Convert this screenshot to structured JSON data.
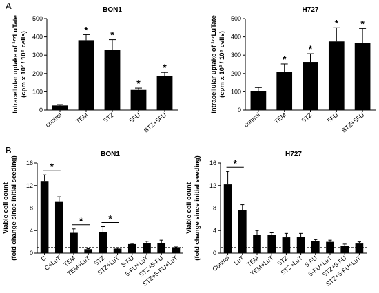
{
  "panel_labels": [
    "A",
    "B"
  ],
  "chart_data": [
    {
      "type": "bar",
      "title": "BON1",
      "ylabel_line1": "Intracellular uptake of ¹⁷⁷LuTate",
      "ylabel_line2": "(cpm x 10² / 10⁶ cells)",
      "xlabel": "",
      "ylim": [
        0,
        500
      ],
      "yticks": [
        0,
        100,
        200,
        300,
        400,
        500
      ],
      "grid": false,
      "categories": [
        "control",
        "TEM",
        "STZ",
        "5FU",
        "STZ+5FU"
      ],
      "values": [
        25,
        382,
        330,
        110,
        188
      ],
      "errors": [
        5,
        30,
        55,
        10,
        18
      ],
      "significance": [
        "",
        "*",
        "*",
        "*",
        "*"
      ]
    },
    {
      "type": "bar",
      "title": "H727",
      "ylabel_line1": "Intracellular uptake of ¹⁷⁷LuTate",
      "ylabel_line2": "(cpm x 10² / 10⁶ cells)",
      "xlabel": "",
      "ylim": [
        0,
        500
      ],
      "yticks": [
        0,
        100,
        200,
        300,
        400,
        500
      ],
      "grid": false,
      "categories": [
        "control",
        "TEM",
        "STZ",
        "5FU",
        "STZ+5FU"
      ],
      "values": [
        105,
        210,
        263,
        375,
        368
      ],
      "errors": [
        18,
        42,
        45,
        75,
        78
      ],
      "significance": [
        "",
        "*",
        "*",
        "*",
        "*"
      ]
    },
    {
      "type": "bar",
      "title": "BON1",
      "ylabel_line1": "Viable cell count",
      "ylabel_line2": "(fold change since initial seeding)",
      "xlabel": "",
      "ylim": [
        0,
        16
      ],
      "yticks": [
        0,
        4,
        8,
        12,
        16
      ],
      "grid": false,
      "reference_line": 1,
      "categories": [
        "C",
        "C+LuT",
        "TEM",
        "TEM+LuT",
        "STZ",
        "STZ+LuT",
        "5-FU",
        "5-FU+LuT",
        "STZ+5-FU",
        "STZ+5-FU+LuT"
      ],
      "values": [
        12.8,
        9.2,
        3.6,
        0.7,
        3.7,
        0.8,
        1.6,
        1.8,
        1.8,
        1.0
      ],
      "errors": [
        1.1,
        0.8,
        0.7,
        0.1,
        1.0,
        0.1,
        0.1,
        0.3,
        0.5,
        0.1
      ],
      "comparisons": [
        {
          "pair": [
            0,
            1
          ],
          "label": "*"
        },
        {
          "pair": [
            2,
            3
          ],
          "label": "*"
        },
        {
          "pair": [
            4,
            5
          ],
          "label": "*"
        }
      ]
    },
    {
      "type": "bar",
      "title": "H727",
      "ylabel_line1": "Viable cell count",
      "ylabel_line2": "(fold change since initial seeding)",
      "xlabel": "",
      "ylim": [
        0,
        16
      ],
      "yticks": [
        0,
        4,
        8,
        12,
        16
      ],
      "grid": false,
      "reference_line": 1,
      "categories": [
        "Control",
        "LuT",
        "TEM",
        "TEM+LuT",
        "STZ",
        "STZ+LuT",
        "5-FU",
        "5-FU+LuT",
        "STZ+5-FU",
        "STZ+5-FU+LuT"
      ],
      "values": [
        12.2,
        7.6,
        3.2,
        3.2,
        2.8,
        2.9,
        2.1,
        2.0,
        1.3,
        1.7
      ],
      "errors": [
        2.3,
        1.0,
        0.8,
        0.4,
        0.7,
        0.6,
        0.3,
        0.3,
        0.3,
        0.3
      ],
      "comparisons": [
        {
          "pair": [
            0,
            1
          ],
          "label": "*"
        }
      ]
    }
  ]
}
